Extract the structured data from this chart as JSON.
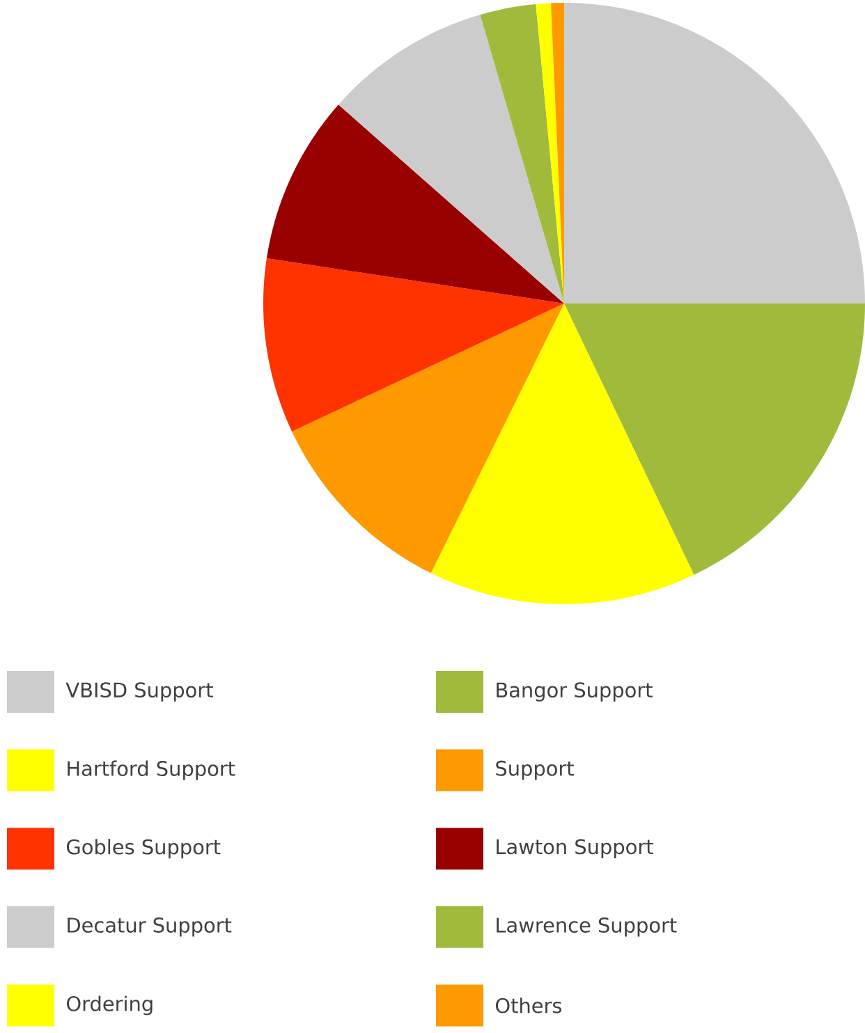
{
  "chart_data": {
    "type": "pie",
    "categories": [
      "VBISD Support",
      "Bangor Support",
      "Hartford Support",
      "Support",
      "Gobles Support",
      "Lawton Support",
      "Decatur Support",
      "Lawrence Support",
      "Ordering",
      "Others"
    ],
    "values": [
      25,
      17.9,
      14.4,
      10.7,
      9.4,
      9.1,
      9.0,
      3.0,
      0.8,
      0.7
    ],
    "colors": [
      "#cccccc",
      "#a0ba3c",
      "#ffff00",
      "#ff9900",
      "#ff3300",
      "#990000",
      "#cccccc",
      "#a0ba3c",
      "#ffff00",
      "#ff9900"
    ],
    "legend": "bottom"
  }
}
